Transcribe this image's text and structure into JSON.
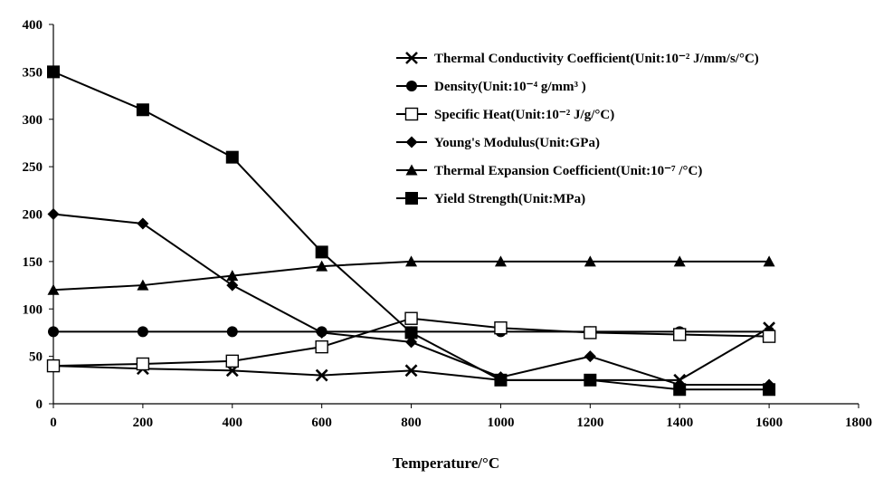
{
  "chart_data": {
    "type": "line",
    "title": "",
    "xlabel": "Temperature/°C",
    "ylabel": "",
    "xlim": [
      0,
      1800
    ],
    "ylim": [
      0,
      400
    ],
    "xticks": [
      0,
      200,
      400,
      600,
      800,
      1000,
      1200,
      1400,
      1600,
      1800
    ],
    "yticks": [
      0,
      50,
      100,
      150,
      200,
      250,
      300,
      350,
      400
    ],
    "grid": false,
    "legend_position": "top-right",
    "x": [
      0,
      200,
      400,
      600,
      800,
      1000,
      1200,
      1400,
      1600
    ],
    "series": [
      {
        "name": "Thermal Conductivity Coefficient(Unit:10⁻² J/mm/s/°C)",
        "marker": "x",
        "values": [
          40,
          37,
          35,
          30,
          35,
          25,
          25,
          25,
          80
        ]
      },
      {
        "name": "Density(Unit:10⁻⁴ g/mm³ )",
        "marker": "circle",
        "values": [
          76,
          76,
          76,
          76,
          76,
          76,
          76,
          76,
          76
        ]
      },
      {
        "name": "Specific Heat(Unit:10⁻² J/g/°C)",
        "marker": "open-square",
        "values": [
          40,
          42,
          45,
          60,
          90,
          80,
          75,
          73,
          71
        ]
      },
      {
        "name": "Young's Modulus(Unit:GPa)",
        "marker": "diamond",
        "values": [
          200,
          190,
          125,
          75,
          65,
          28,
          50,
          20,
          20
        ]
      },
      {
        "name": "Thermal Expansion Coefficient(Unit:10⁻⁷ /°C)",
        "marker": "triangle",
        "values": [
          120,
          125,
          135,
          145,
          150,
          150,
          150,
          150,
          150
        ]
      },
      {
        "name": "Yield Strength(Unit:MPa)",
        "marker": "filled-square",
        "values": [
          350,
          310,
          260,
          160,
          75,
          25,
          25,
          15,
          15
        ]
      }
    ]
  }
}
